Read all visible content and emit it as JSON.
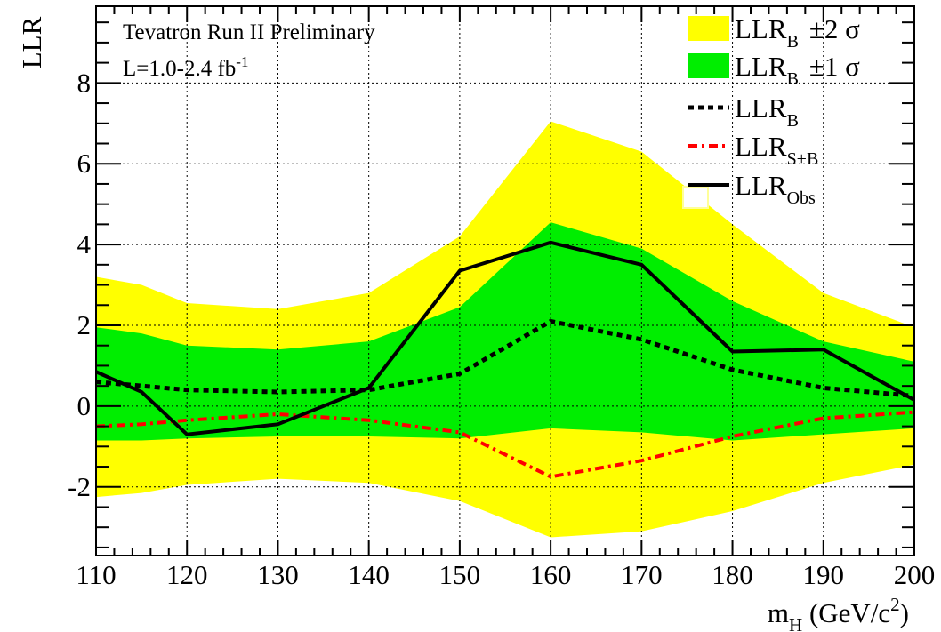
{
  "chart_data": {
    "type": "area",
    "title": "",
    "xlabel": {
      "main": "m",
      "sub": "H",
      "rest": " (GeV/c",
      "sup": "2",
      "end": ")"
    },
    "ylabel": "LLR",
    "xlim": [
      110,
      200
    ],
    "ylim": [
      -3.7,
      9.9
    ],
    "xticks": [
      110,
      120,
      130,
      140,
      150,
      160,
      170,
      180,
      190,
      200
    ],
    "yticks": [
      -2,
      0,
      2,
      4,
      6,
      8
    ],
    "grid": true,
    "x": [
      110,
      115,
      120,
      130,
      140,
      150,
      160,
      170,
      180,
      190,
      200
    ],
    "series": [
      {
        "name": "LLR_B ±2 σ",
        "style": "band",
        "color": "#ffff00",
        "upper": [
          3.2,
          3.0,
          2.55,
          2.4,
          2.8,
          4.2,
          7.05,
          6.3,
          4.5,
          2.8,
          1.95
        ],
        "lower": [
          -2.25,
          -2.15,
          -1.95,
          -1.8,
          -1.9,
          -2.35,
          -3.25,
          -3.1,
          -2.6,
          -1.9,
          -1.45
        ]
      },
      {
        "name": "LLR_B ±1 σ",
        "style": "band",
        "color": "#00ee00",
        "upper": [
          1.95,
          1.8,
          1.5,
          1.4,
          1.6,
          2.45,
          4.55,
          3.9,
          2.6,
          1.6,
          1.1
        ],
        "lower": [
          -0.85,
          -0.85,
          -0.8,
          -0.75,
          -0.75,
          -0.8,
          -0.55,
          -0.65,
          -0.85,
          -0.7,
          -0.55
        ]
      },
      {
        "name": "LLR_B",
        "style": "dotted",
        "color": "#000000",
        "values": [
          0.6,
          0.5,
          0.4,
          0.35,
          0.4,
          0.8,
          2.1,
          1.65,
          0.9,
          0.45,
          0.25
        ]
      },
      {
        "name": "LLR_S+B",
        "style": "dashdot",
        "color": "#ff0000",
        "values": [
          -0.5,
          -0.45,
          -0.35,
          -0.2,
          -0.35,
          -0.65,
          -1.75,
          -1.35,
          -0.75,
          -0.3,
          -0.15
        ]
      },
      {
        "name": "LLR_Obs",
        "style": "solid",
        "color": "#000000",
        "values": [
          0.85,
          0.35,
          -0.7,
          -0.45,
          0.45,
          3.35,
          4.05,
          3.5,
          1.35,
          1.4,
          0.15
        ]
      }
    ],
    "legend": {
      "position": "top-right",
      "entries": [
        {
          "main": "LLR",
          "sub": "B",
          "suffix": "±2 σ",
          "key": "box",
          "color": "#ffff00"
        },
        {
          "main": "LLR",
          "sub": "B",
          "suffix": "±1 σ",
          "key": "box",
          "color": "#00ee00"
        },
        {
          "main": "LLR",
          "sub": "B",
          "suffix": "",
          "key": "dotted",
          "color": "#000000"
        },
        {
          "main": "LLR",
          "sub": "S+B",
          "suffix": "",
          "key": "dashdot",
          "color": "#ff0000"
        },
        {
          "main": "LLR",
          "sub": "Obs",
          "suffix": "",
          "key": "solid",
          "color": "#000000"
        }
      ]
    },
    "annotations": [
      {
        "text": "Tevatron Run II Preliminary"
      },
      {
        "text": "L=1.0-2.4 fb",
        "sup": "-1"
      }
    ]
  }
}
